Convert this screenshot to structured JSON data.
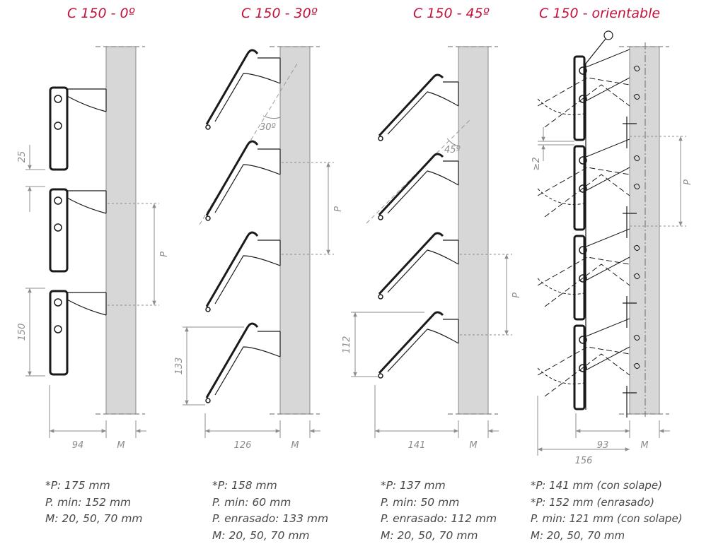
{
  "columns": [
    {
      "title": "C 150 - 0º",
      "specs": [
        "*P: 175 mm",
        "P. min: 152 mm",
        "M: 20, 50, 70 mm"
      ],
      "dims": {
        "width": "94",
        "wall": "M",
        "pitch": "P",
        "gap": "25",
        "height": "150"
      }
    },
    {
      "title": "C 150 - 30º",
      "specs": [
        "*P: 158 mm",
        "P. min: 60 mm",
        "P. enrasado: 133 mm",
        "M: 20, 50, 70 mm"
      ],
      "dims": {
        "width": "126",
        "wall": "M",
        "pitch": "P",
        "angle": "30º",
        "height": "133"
      }
    },
    {
      "title": "C 150 - 45º",
      "specs": [
        "*P: 137 mm",
        "P. min: 50 mm",
        "P. enrasado: 112 mm",
        "M: 20, 50, 70 mm"
      ],
      "dims": {
        "width": "141",
        "wall": "M",
        "pitch": "P",
        "angle": "45º",
        "height": "112"
      }
    },
    {
      "title": "C 150 - orientable",
      "specs": [
        "*P: 141 mm (con solape)",
        "*P: 152 mm (enrasado)",
        "P. min: 121 mm (con solape)",
        "M: 20, 50, 70 mm"
      ],
      "dims": {
        "width": "93",
        "wall": "M",
        "pitch": "P",
        "gap": "≥2",
        "overall": "156"
      }
    }
  ],
  "colors": {
    "title": "#c4123c",
    "wall": "#d7d7d7",
    "line": "#1a1a1a",
    "dim": "#8c8c8c"
  }
}
